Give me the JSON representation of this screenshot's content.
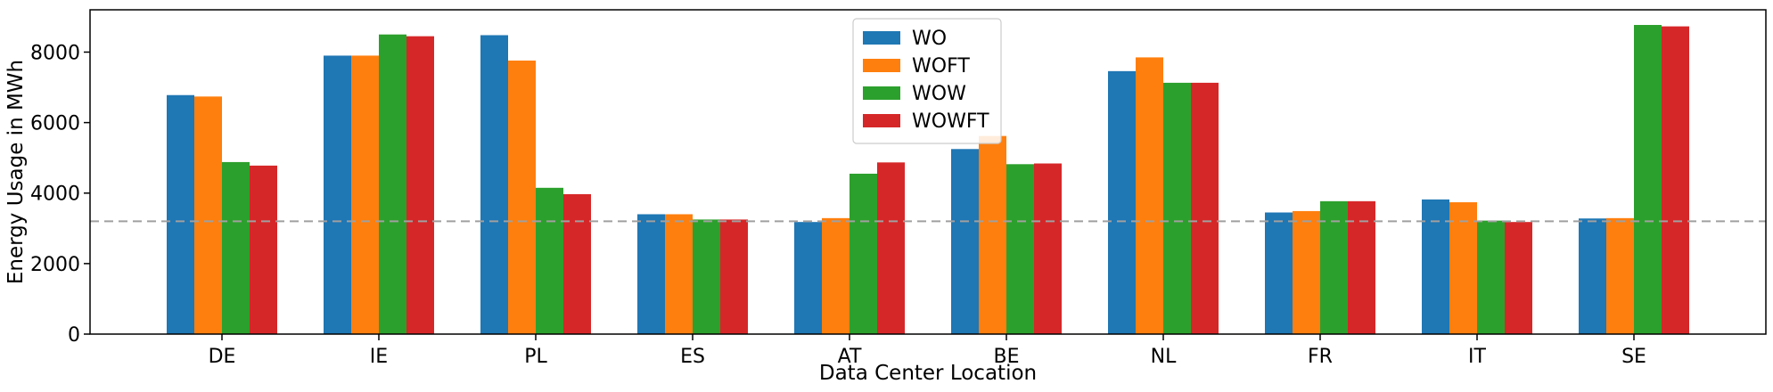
{
  "chart_data": {
    "type": "bar",
    "title": "",
    "xlabel": "Data Center Location",
    "ylabel": "Energy Usage in MWh",
    "categories": [
      "DE",
      "IE",
      "PL",
      "ES",
      "AT",
      "BE",
      "NL",
      "FR",
      "IT",
      "SE"
    ],
    "series": [
      {
        "name": "WO",
        "color": "#1f77b4",
        "values": [
          6780,
          7900,
          8480,
          3400,
          3180,
          5250,
          7460,
          3450,
          3820,
          3280
        ]
      },
      {
        "name": "WOFT",
        "color": "#ff7f0e",
        "values": [
          6740,
          7900,
          7760,
          3400,
          3290,
          5620,
          7850,
          3490,
          3740,
          3290
        ]
      },
      {
        "name": "WOW",
        "color": "#2ca02c",
        "values": [
          4880,
          8500,
          4150,
          3250,
          4550,
          4820,
          7130,
          3770,
          3220,
          8770
        ]
      },
      {
        "name": "WOWFT",
        "color": "#d62728",
        "values": [
          4780,
          8450,
          3970,
          3250,
          4870,
          4840,
          7130,
          3770,
          3180,
          8730
        ]
      }
    ],
    "yticks": [
      "0",
      "2000",
      "4000",
      "6000",
      "8000"
    ],
    "ylim": [
      0,
      9200
    ],
    "reference_line": {
      "y": 3200,
      "style": "dashed",
      "color": "#a0a0a0"
    },
    "legend_position": "top-center",
    "grid": false
  }
}
